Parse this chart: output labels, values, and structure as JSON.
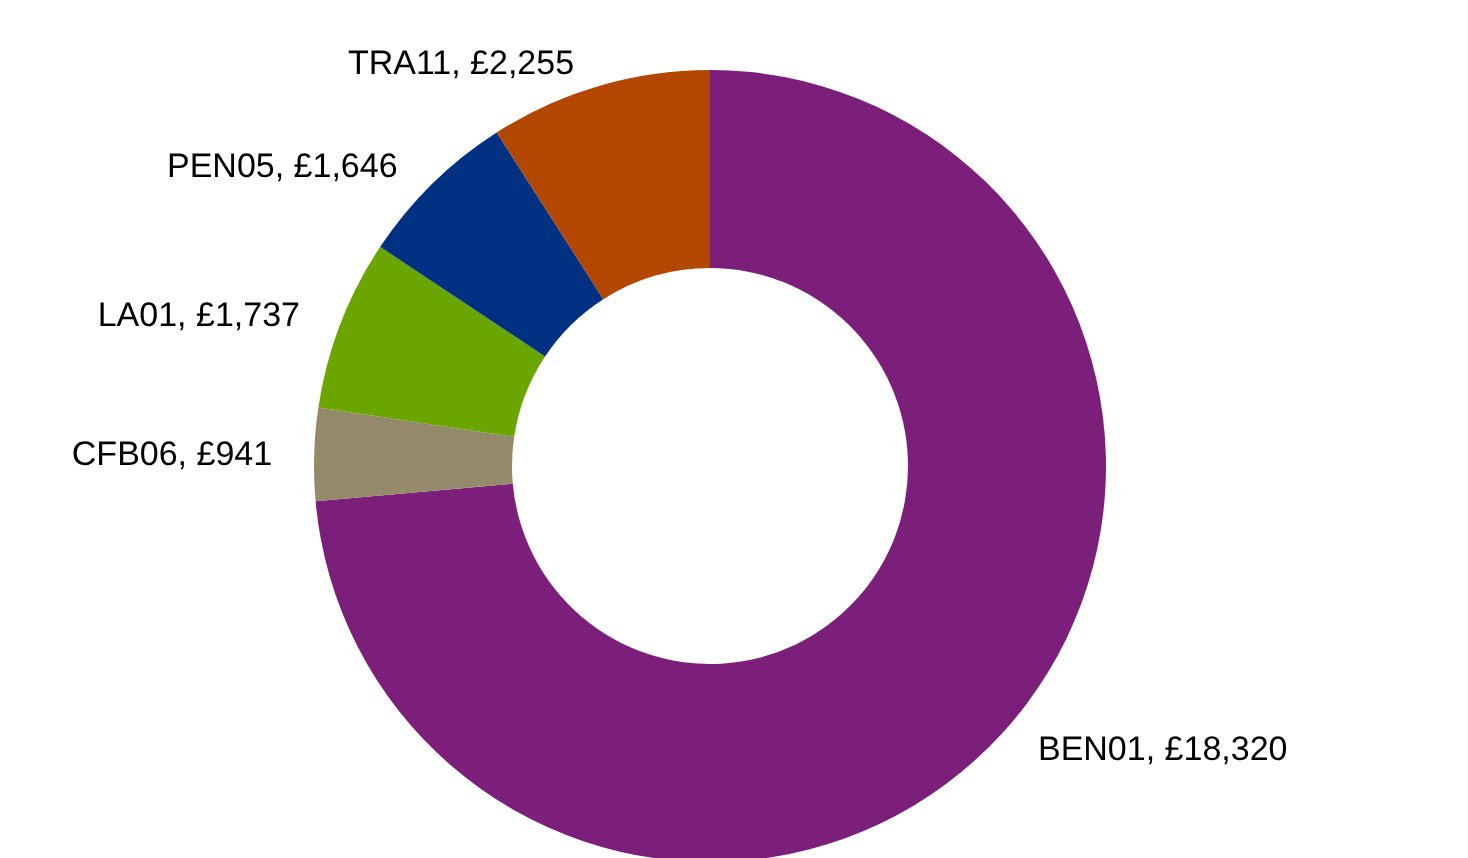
{
  "chart_data": {
    "type": "donut",
    "categories": [
      "BEN01",
      "CFB06",
      "LA01",
      "PEN05",
      "TRA11"
    ],
    "values": [
      18320,
      941,
      1737,
      1646,
      2255
    ],
    "value_labels": [
      "£18,320",
      "£941",
      "£1,737",
      "£1,646",
      "£2,255"
    ],
    "colors": [
      "#7b1f7b",
      "#948a6a",
      "#6aa500",
      "#003082",
      "#b34700"
    ],
    "legend": false
  }
}
